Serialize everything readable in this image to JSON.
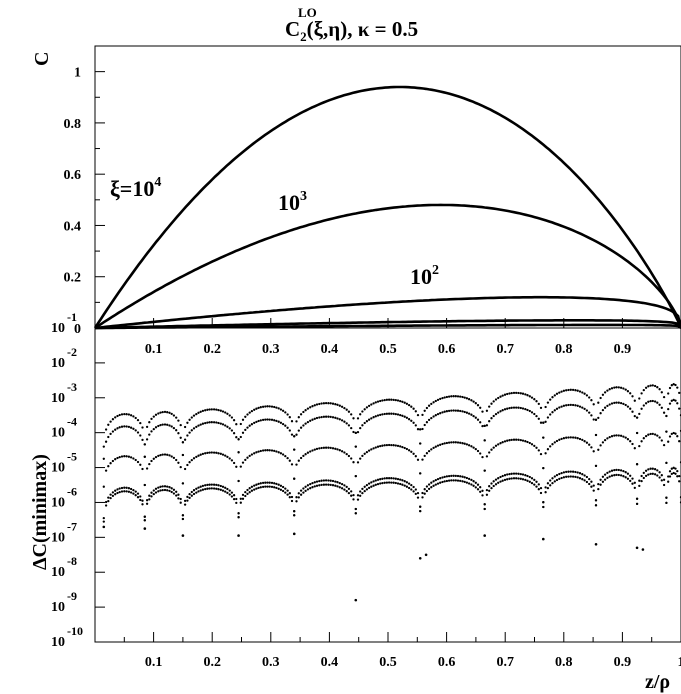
{
  "chart_data": [
    {
      "type": "line",
      "title": "C",
      "title_sup": "LO",
      "title_sub": "2",
      "title_rest": "(ξ,η), κ = 0.5",
      "ylabel": "C",
      "xlim": [
        0,
        1
      ],
      "ylim": [
        0,
        1.1
      ],
      "grid": false,
      "x_ticks": [
        "0.1",
        "0.2",
        "0.3",
        "0.4",
        "0.5",
        "0.6",
        "0.7",
        "0.8",
        "0.9"
      ],
      "y_ticks": [
        "0",
        "0.2",
        "0.4",
        "0.6",
        "0.8",
        "1"
      ],
      "series": [
        {
          "name": "ξ=10⁴",
          "label": "ξ=10",
          "label_sup": "4",
          "peak_x": 0.52,
          "peak_y": 0.94
        },
        {
          "name": "10³",
          "label": "10",
          "label_sup": "3",
          "peak_x": 0.59,
          "peak_y": 0.48
        },
        {
          "name": "10²",
          "label": "10",
          "label_sup": "2",
          "peak_x": 0.76,
          "peak_y": 0.12
        },
        {
          "name": "",
          "label": "",
          "label_sup": "",
          "peak_x": 0.82,
          "peak_y": 0.03
        },
        {
          "name": "",
          "label": "",
          "label_sup": "",
          "peak_x": 0.86,
          "peak_y": 0.012
        }
      ]
    },
    {
      "type": "scatter",
      "ylabel": "ΔC(minimax)",
      "xlabel": "z/ρ",
      "xlim": [
        0,
        1
      ],
      "y_scale": "log",
      "y_exponent_range": [
        -10,
        -1
      ],
      "grid": false,
      "x_ticks": [
        "0.1",
        "0.2",
        "0.3",
        "0.4",
        "0.5",
        "0.6",
        "0.7",
        "0.8",
        "0.9",
        "1"
      ],
      "y_ticks": [
        {
          "base": "10",
          "exp": "-1"
        },
        {
          "base": "10",
          "exp": "-2"
        },
        {
          "base": "10",
          "exp": "-3"
        },
        {
          "base": "10",
          "exp": "-4"
        },
        {
          "base": "10",
          "exp": "-5"
        },
        {
          "base": "10",
          "exp": "-6"
        },
        {
          "base": "10",
          "exp": "-7"
        },
        {
          "base": "10",
          "exp": "-8"
        },
        {
          "base": "10",
          "exp": "-9"
        },
        {
          "base": "10",
          "exp": "-10"
        }
      ],
      "error_bands": [
        {
          "log_peak_start": -3.5,
          "log_peak_end": -2.6,
          "depth": 0.9
        },
        {
          "log_peak_start": -3.85,
          "log_peak_end": -3.05,
          "depth": 0.9
        },
        {
          "log_peak_start": -4.7,
          "log_peak_end": -4.0,
          "depth": 0.85
        },
        {
          "log_peak_start": -5.6,
          "log_peak_end": -5.0,
          "depth": 0.85
        },
        {
          "log_peak_start": -5.7,
          "log_peak_end": -5.15,
          "depth": 0.85
        }
      ],
      "node_positions": [
        0.015,
        0.085,
        0.15,
        0.245,
        0.34,
        0.445,
        0.555,
        0.665,
        0.765,
        0.855,
        0.925,
        0.975,
        1.0
      ],
      "outliers": [
        {
          "x": 0.015,
          "log_y": -6.7
        },
        {
          "x": 0.085,
          "log_y": -6.75
        },
        {
          "x": 0.15,
          "log_y": -6.95
        },
        {
          "x": 0.245,
          "log_y": -6.95
        },
        {
          "x": 0.34,
          "log_y": -6.9
        },
        {
          "x": 0.445,
          "log_y": -8.8
        },
        {
          "x": 0.555,
          "log_y": -7.6
        },
        {
          "x": 0.565,
          "log_y": -7.5
        },
        {
          "x": 0.665,
          "log_y": -6.95
        },
        {
          "x": 0.765,
          "log_y": -7.05
        },
        {
          "x": 0.855,
          "log_y": -7.2
        },
        {
          "x": 0.925,
          "log_y": -7.3
        },
        {
          "x": 0.935,
          "log_y": -7.35
        }
      ]
    }
  ]
}
